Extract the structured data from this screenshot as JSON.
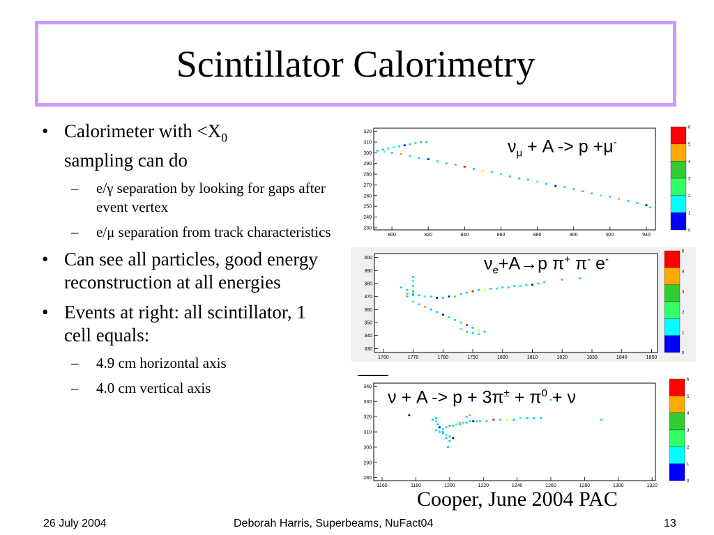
{
  "title": "Scintillator Calorimetry",
  "bullets": {
    "b1_part1": "Calorimeter with <X",
    "b1_sub": "0",
    "b1_part2": "sampling can do",
    "s1": "e/γ separation by looking for gaps after event vertex",
    "s2": "e/μ separation from track characteristics",
    "b2": "Can see all particles, good energy reconstruction at all energies",
    "b3": "Events at right:  all scintillator, 1 cell equals:",
    "s3": "4.9 cm horizontal axis",
    "s4": "4.0 cm vertical axis"
  },
  "formulas": {
    "f1": {
      "nu": "ν",
      "nu_sub": "μ",
      "mid": " + A -> p +μ",
      "sup": "-"
    },
    "f2": {
      "nu": "ν",
      "nu_sub": "e",
      "mid": "+A→p π",
      "sup1": "+",
      "mid2": " π",
      "sup2": "-",
      "mid3": " e",
      "sup3": "-"
    },
    "f3": {
      "text1": "ν + A -> p + 3π",
      "sup1": "±",
      "text2": " +  π",
      "sup2": "0",
      "text3": " + ν"
    }
  },
  "caption": "Cooper, June 2004 PAC",
  "footer": {
    "date": "26 July 2004",
    "center": "Deborah Harris, Superbeams, NuFact04",
    "page": "13"
  },
  "palette": [
    "#0000ff",
    "#00ccff",
    "#33ff99",
    "#33cc33",
    "#00ff66",
    "#ffff00",
    "#ff9900",
    "#ff0000"
  ],
  "chart_data": [
    {
      "type": "scatter",
      "x_ticks": [
        "800",
        "820",
        "840",
        "860",
        "880",
        "900",
        "920",
        "940"
      ],
      "y_ticks": [
        "230",
        "240",
        "250",
        "260",
        "270",
        "280",
        "290",
        "300",
        "310",
        "320"
      ],
      "xlim": [
        790,
        945
      ],
      "ylim": [
        228,
        323
      ],
      "colorbar_ticks": [
        "0",
        "1",
        "2",
        "3",
        "4",
        "5",
        "6"
      ],
      "points": [
        [
          792,
          302
        ],
        [
          795,
          303
        ],
        [
          798,
          304
        ],
        [
          801,
          305
        ],
        [
          804,
          306
        ],
        [
          807,
          307
        ],
        [
          810,
          308
        ],
        [
          813,
          309
        ],
        [
          816,
          310
        ],
        [
          819,
          310
        ],
        [
          796,
          301
        ],
        [
          800,
          300
        ],
        [
          805,
          299
        ],
        [
          810,
          297
        ],
        [
          815,
          295
        ],
        [
          820,
          294
        ],
        [
          825,
          292
        ],
        [
          830,
          290
        ],
        [
          835,
          289
        ],
        [
          840,
          287
        ],
        [
          845,
          285
        ],
        [
          850,
          283
        ],
        [
          855,
          282
        ],
        [
          860,
          280
        ],
        [
          865,
          278
        ],
        [
          870,
          276
        ],
        [
          875,
          275
        ],
        [
          880,
          273
        ],
        [
          885,
          271
        ],
        [
          890,
          269
        ],
        [
          895,
          268
        ],
        [
          900,
          266
        ],
        [
          905,
          264
        ],
        [
          910,
          262
        ],
        [
          915,
          260
        ],
        [
          920,
          259
        ],
        [
          925,
          257
        ],
        [
          930,
          255
        ],
        [
          935,
          253
        ],
        [
          940,
          251
        ],
        [
          942,
          249
        ]
      ]
    },
    {
      "type": "scatter",
      "x_ticks": [
        "1760",
        "1770",
        "1780",
        "1790",
        "1800",
        "1810",
        "1820",
        "1830",
        "1840",
        "1850"
      ],
      "y_ticks": [
        "330",
        "340",
        "350",
        "360",
        "370",
        "380",
        "390",
        "400"
      ],
      "xlim": [
        1757,
        1852
      ],
      "ylim": [
        327,
        403
      ],
      "colorbar_ticks": [
        "0",
        "1",
        "2",
        "3",
        "4",
        "5"
      ],
      "points": [
        [
          1768,
          370
        ],
        [
          1770,
          371
        ],
        [
          1772,
          371
        ],
        [
          1774,
          370
        ],
        [
          1776,
          370
        ],
        [
          1778,
          369
        ],
        [
          1780,
          369
        ],
        [
          1770,
          372
        ],
        [
          1770,
          374
        ],
        [
          1770,
          378
        ],
        [
          1770,
          382
        ],
        [
          1770,
          385
        ],
        [
          1768,
          372
        ],
        [
          1768,
          375
        ],
        [
          1766,
          377
        ],
        [
          1782,
          370
        ],
        [
          1784,
          370
        ],
        [
          1786,
          372
        ],
        [
          1788,
          373
        ],
        [
          1790,
          374
        ],
        [
          1792,
          375
        ],
        [
          1794,
          375
        ],
        [
          1796,
          376
        ],
        [
          1798,
          376
        ],
        [
          1800,
          377
        ],
        [
          1802,
          377
        ],
        [
          1804,
          378
        ],
        [
          1806,
          378
        ],
        [
          1808,
          379
        ],
        [
          1810,
          379
        ],
        [
          1812,
          380
        ],
        [
          1814,
          381
        ],
        [
          1820,
          383
        ],
        [
          1826,
          384
        ],
        [
          1770,
          366
        ],
        [
          1772,
          364
        ],
        [
          1774,
          362
        ],
        [
          1776,
          360
        ],
        [
          1778,
          358
        ],
        [
          1780,
          356
        ],
        [
          1782,
          354
        ],
        [
          1784,
          352
        ],
        [
          1786,
          350
        ],
        [
          1788,
          348
        ],
        [
          1790,
          346
        ],
        [
          1792,
          344
        ],
        [
          1794,
          343
        ],
        [
          1786,
          345
        ],
        [
          1788,
          343
        ],
        [
          1790,
          342
        ],
        [
          1792,
          341
        ]
      ]
    },
    {
      "type": "scatter",
      "x_ticks": [
        "1160",
        "1180",
        "1200",
        "1220",
        "1240",
        "1260",
        "1280",
        "1300",
        "1320"
      ],
      "y_ticks": [
        "280",
        "290",
        "300",
        "310",
        "320",
        "330",
        "340"
      ],
      "xlim": [
        1155,
        1322
      ],
      "ylim": [
        278,
        342
      ],
      "colorbar_ticks": [
        "0",
        "1",
        "2",
        "3",
        "4",
        "5",
        "6"
      ],
      "points": [
        [
          1192,
          311
        ],
        [
          1194,
          310
        ],
        [
          1196,
          309
        ],
        [
          1198,
          308
        ],
        [
          1200,
          307
        ],
        [
          1202,
          306
        ],
        [
          1196,
          312
        ],
        [
          1198,
          313
        ],
        [
          1200,
          314
        ],
        [
          1202,
          314
        ],
        [
          1204,
          315
        ],
        [
          1206,
          315
        ],
        [
          1208,
          316
        ],
        [
          1210,
          316
        ],
        [
          1212,
          317
        ],
        [
          1214,
          317
        ],
        [
          1216,
          317
        ],
        [
          1218,
          317
        ],
        [
          1222,
          317
        ],
        [
          1226,
          318
        ],
        [
          1230,
          318
        ],
        [
          1234,
          318
        ],
        [
          1238,
          318
        ],
        [
          1242,
          319
        ],
        [
          1246,
          319
        ],
        [
          1250,
          319
        ],
        [
          1254,
          319
        ],
        [
          1192,
          317
        ],
        [
          1193,
          315
        ],
        [
          1194,
          313
        ],
        [
          1196,
          310
        ],
        [
          1198,
          306
        ],
        [
          1200,
          304
        ],
        [
          1199,
          300
        ],
        [
          1206,
          316
        ],
        [
          1210,
          320
        ],
        [
          1212,
          321
        ],
        [
          1192,
          319
        ],
        [
          1190,
          318
        ],
        [
          1176,
          321
        ],
        [
          1260,
          331
        ],
        [
          1290,
          318
        ]
      ]
    }
  ]
}
